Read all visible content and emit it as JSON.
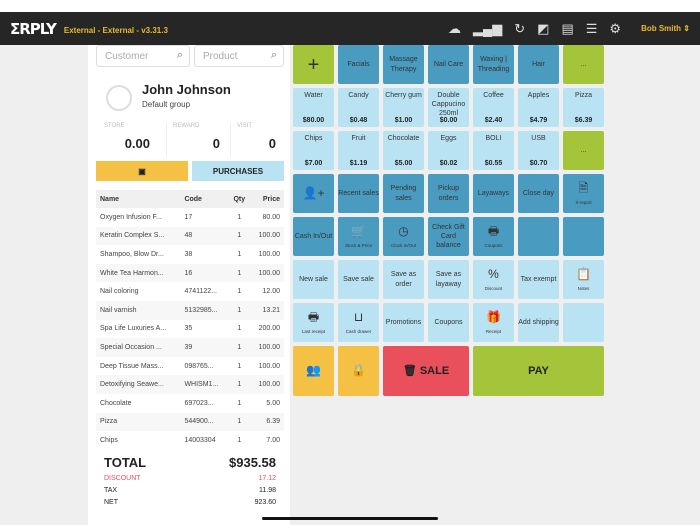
{
  "header": {
    "logo": "ΣRPLY",
    "version": "External - External - v3.31.3",
    "user": "Bob Smith",
    "icons": [
      "cloud-icon",
      "signal-icon",
      "refresh-icon",
      "edit-icon",
      "archive-icon",
      "list-icon",
      "gear-icon"
    ]
  },
  "search": {
    "customer_placeholder": "Customer",
    "product_placeholder": "Product"
  },
  "customer": {
    "name": "John Johnson",
    "group": "Default group",
    "store_label": "STORE",
    "store": "0.00",
    "reward_label": "REWARD",
    "reward": "0",
    "visit_label": "VISIT",
    "visit": "0"
  },
  "buttons": {
    "purchases": "PURCHASES"
  },
  "table": {
    "headers": [
      "Name",
      "Code",
      "Qty",
      "Price"
    ],
    "rows": [
      [
        "Oxygen Infusion F...",
        "17",
        "1",
        "80.00"
      ],
      [
        "Keratin Complex S...",
        "48",
        "1",
        "100.00"
      ],
      [
        "Shampoo, Blow Dr...",
        "38",
        "1",
        "100.00"
      ],
      [
        "White Tea Harmon...",
        "16",
        "1",
        "100.00"
      ],
      [
        "Nail coloring",
        "4741122...",
        "1",
        "12.00"
      ],
      [
        "Nail varnish",
        "5132985...",
        "1",
        "13.21"
      ],
      [
        "Spa Life Luxuries A...",
        "35",
        "1",
        "200.00"
      ],
      [
        "Special Occasion ...",
        "39",
        "1",
        "100.00"
      ],
      [
        "Deep Tissue Mass...",
        "098765...",
        "1",
        "100.00"
      ],
      [
        "Detoxifying Seawe...",
        "WHISM1...",
        "1",
        "100.00"
      ],
      [
        "Chocolate",
        "697023...",
        "1",
        "5.00"
      ],
      [
        "Pizza",
        "544900...",
        "1",
        "6.39"
      ],
      [
        "Chips",
        "14003304",
        "1",
        "7.00"
      ]
    ]
  },
  "totals": {
    "total_label": "TOTAL",
    "total": "$935.58",
    "discount_label": "DISCOUNT",
    "discount": "17.12",
    "tax_label": "TAX",
    "tax": "11.98",
    "net_label": "NET",
    "net": "923.60"
  },
  "colors": {
    "dark": "#4a9bc0",
    "light": "#b9e3f3",
    "green": "#a4c43a",
    "yellow": "#f4c145",
    "red": "#e9505b",
    "discount": "#e9505b"
  },
  "tiles": [
    {
      "c": "green",
      "icon": "+",
      "name": "add-icon"
    },
    {
      "c": "dark",
      "label": "Facials"
    },
    {
      "c": "dark",
      "label": "Massage Therapy"
    },
    {
      "c": "dark",
      "label": "Nail Care"
    },
    {
      "c": "dark",
      "label": "Waxing | Threading"
    },
    {
      "c": "dark",
      "label": "Hair"
    },
    {
      "c": "green",
      "label": "..."
    },
    {
      "c": "light",
      "label": "Water",
      "price": "$80.00"
    },
    {
      "c": "light",
      "label": "Candy",
      "price": "$0.48"
    },
    {
      "c": "light",
      "label": "Cherry gum",
      "price": "$1.00"
    },
    {
      "c": "light",
      "label": "Double Cappucino 250ml",
      "price": "$0.00"
    },
    {
      "c": "light",
      "label": "Coffee",
      "price": "$2.40"
    },
    {
      "c": "light",
      "label": "Apples",
      "price": "$4.79"
    },
    {
      "c": "light",
      "label": "Pizza",
      "price": "$6.39"
    },
    {
      "c": "light",
      "label": "Chips",
      "price": "$7.00"
    },
    {
      "c": "light",
      "label": "Fruit",
      "price": "$1.19"
    },
    {
      "c": "light",
      "label": "Chocolate",
      "price": "$5.00"
    },
    {
      "c": "light",
      "label": "Eggs",
      "price": "$0.02"
    },
    {
      "c": "light",
      "label": "BOLI",
      "price": "$0.55"
    },
    {
      "c": "light",
      "label": "USB",
      "price": "$0.70"
    },
    {
      "c": "green",
      "label": "..."
    },
    {
      "c": "dark",
      "icon": "👤+",
      "name": "add-customer-icon"
    },
    {
      "c": "dark",
      "label": "Recent sales"
    },
    {
      "c": "dark",
      "label": "Pending sales"
    },
    {
      "c": "dark",
      "label": "Pickup orders"
    },
    {
      "c": "dark",
      "label": "Layaways"
    },
    {
      "c": "dark",
      "label": "Close day"
    },
    {
      "c": "dark",
      "icon": "🗎",
      "name": "report-icon",
      "sub": "X-report"
    },
    {
      "c": "dark",
      "label": "Cash In/Out"
    },
    {
      "c": "dark",
      "icon": "🛒",
      "name": "cart-icon",
      "sub": "Stock & Price"
    },
    {
      "c": "dark",
      "icon": "◷",
      "name": "clock-icon",
      "sub": "Clock In/Out"
    },
    {
      "c": "dark",
      "label": "Check Gift Card balance"
    },
    {
      "c": "dark",
      "icon": "🖶",
      "name": "printer-icon",
      "sub": "Coupons"
    },
    {
      "c": "dark"
    },
    {
      "c": "dark"
    },
    {
      "c": "light",
      "label": "New sale"
    },
    {
      "c": "light",
      "label": "Save sale"
    },
    {
      "c": "light",
      "label": "Save as order"
    },
    {
      "c": "light",
      "label": "Save as layaway"
    },
    {
      "c": "light",
      "icon": "%",
      "name": "discount-icon",
      "sub": "Discount"
    },
    {
      "c": "light",
      "label": "Tax exempt"
    },
    {
      "c": "light",
      "icon": "📋",
      "name": "clipboard-icon",
      "sub": "Notes"
    },
    {
      "c": "light",
      "icon": "🖶",
      "name": "printer-icon",
      "sub": "Last receipt"
    },
    {
      "c": "light",
      "icon": "⊔",
      "name": "inbox-icon",
      "sub": "Cash drawer"
    },
    {
      "c": "light",
      "label": "Promotions"
    },
    {
      "c": "light",
      "label": "Coupons"
    },
    {
      "c": "light",
      "icon": "🎁",
      "name": "gift-icon",
      "sub": "Receipt"
    },
    {
      "c": "light",
      "label": "Add shipping"
    },
    {
      "c": "light"
    },
    {
      "c": "yellow",
      "icon": "👥",
      "name": "users-icon"
    },
    {
      "c": "yellow",
      "icon": "🔒",
      "name": "lock-icon"
    },
    {
      "c": "red",
      "label": "🗑 SALE",
      "span": 2,
      "big": true
    },
    {
      "c": "green",
      "label": "PAY",
      "span": 3,
      "big": true
    }
  ]
}
